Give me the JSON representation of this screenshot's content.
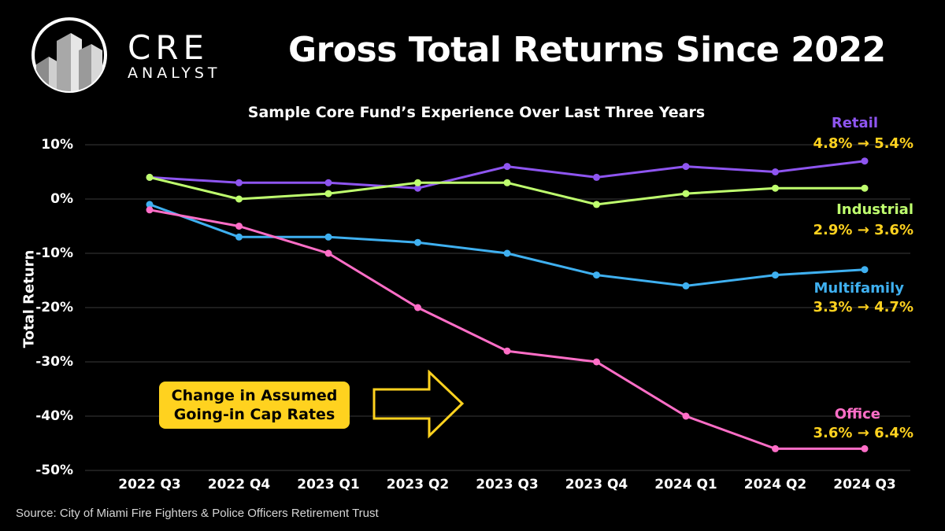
{
  "brand": {
    "line1": "CRE",
    "line2": "ANALYST"
  },
  "colors": {
    "background": "#000000",
    "retail": "#8E55F0",
    "industrial": "#BFFF6E",
    "multifamily": "#3FB0F0",
    "office": "#FF6EC7",
    "highlight": "#FFD21F",
    "grid": "#3a3a3a"
  },
  "chart_data": {
    "type": "line",
    "title": "Gross Total Returns Since 2022",
    "subtitle": "Sample Core Fund’s Experience Over Last Three Years",
    "ylabel": "Total Return",
    "xlabel": "",
    "ylim": [
      -50,
      10
    ],
    "yticks": [
      10,
      0,
      -10,
      -20,
      -30,
      -40,
      -50
    ],
    "ytick_labels": [
      "10%",
      "0%",
      "-10%",
      "-20%",
      "-30%",
      "-40%",
      "-50%"
    ],
    "categories": [
      "2022 Q3",
      "2022 Q4",
      "2023 Q1",
      "2023 Q2",
      "2023 Q3",
      "2023 Q4",
      "2024 Q1",
      "2024 Q2",
      "2024 Q3"
    ],
    "grid": true,
    "series": [
      {
        "key": "retail",
        "name": "Retail",
        "color": "#8E55F0",
        "values": [
          4,
          3,
          3,
          2,
          6,
          4,
          6,
          5,
          7
        ],
        "cap_rate_change": "4.8% → 5.4%"
      },
      {
        "key": "industrial",
        "name": "Industrial",
        "color": "#BFFF6E",
        "values": [
          4,
          0,
          1,
          3,
          3,
          -1,
          1,
          2,
          2
        ],
        "cap_rate_change": "2.9% → 3.6%"
      },
      {
        "key": "multifamily",
        "name": "Multifamily",
        "color": "#3FB0F0",
        "values": [
          -1,
          -7,
          -7,
          -8,
          -10,
          -14,
          -16,
          -14,
          -13
        ],
        "cap_rate_change": "3.3% → 4.7%"
      },
      {
        "key": "office",
        "name": "Office",
        "color": "#FF6EC7",
        "values": [
          -2,
          -5,
          -10,
          -20,
          -28,
          -30,
          -40,
          -46,
          -46
        ],
        "cap_rate_change": "3.6% → 6.4%"
      }
    ],
    "annotation": {
      "line1": "Change in Assumed",
      "line2": "Going-in Cap Rates"
    }
  },
  "source": "Source: City of Miami Fire Fighters & Police Officers Retirement Trust"
}
